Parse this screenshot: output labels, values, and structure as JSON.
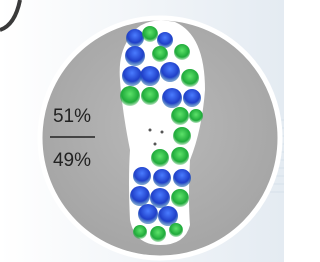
{
  "upper_value": "51%",
  "lower_value": "49%"
}
